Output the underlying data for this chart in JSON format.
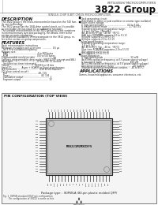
{
  "title_company": "MITSUBISHI MICROCOMPUTERS",
  "title_main": "3822 Group",
  "subtitle": "SINGLE-CHIP 8-BIT CMOS MICROCOMPUTER",
  "bg_color": "#ffffff",
  "description_title": "DESCRIPTION",
  "features_title": "FEATURES",
  "applications_title": "APPLICATIONS",
  "pin_config_title": "PIN CONFIGURATION (TOP VIEW)",
  "chip_label": "M38221M2MXXXFS",
  "package_text": "Package type :  80P6N-A (80-pin plastic molded QFP)",
  "fig_line1": "Fig. 1  80P6N standard 8047 pin configuration",
  "fig_line2": "        Pin configuration of 38222 is same as this.",
  "applications_text": "Games, household appliances, consumer electronics, etc.",
  "description_lines": [
    "The 3822 group is the micro-microcontroller based on the 740 fam-",
    "ily core technology.",
    "The 3822 group has the 16/8-drive control circuit, so it's possible",
    "to connection various serial ICs as additional functions.",
    "The useable microcontroller in the 3822 group includes variations",
    "in internal memory size and packaging. For details, refer to the",
    "section on parts numbering.",
    "For details on availability of microcomputer in the 3822 group, re-",
    "fer to the section on group components."
  ],
  "features_lines": [
    "Basic microcomputer instructions",
    "Minimum instruction execution time  .............  0.5 μs",
    "  (at 8 MHz oscillation frequency)",
    "Memory size:",
    "  RAM  .......................................  4 to 800 bytes",
    "  ROM  ......................................  000 to 500 bytes",
    "Programmable resolution ratio  .......................  up",
    "Software-programmable sleep modes (HALT/STOP concept and SBL)",
    "Interrupts  ...............................  12 sources, 10 vectors",
    "  (includes two timer interrupts)",
    "Timers  .................................  16/8/16 to 24 bits",
    "Serial I/O  ...........  Async + IrDA/RF or Quasi-asynchronous",
    "A-D converter  .............................  8/10 bits/4-channels",
    "I/O (close control circuit):",
    "  Port  .........................................  48, 116",
    "  Timer  ..........................................  40, 104",
    "  Cumulative output  ...................................  2",
    "  Segment output  .....................................  32"
  ],
  "right_col_lines": [
    "Clock generating circuit:",
    "  (Selectable to either crystal oscillator or ceramic type oscillator)",
    "Power source voltage:",
    "  In high-speed master  .............................  4.0 to 5.5V",
    "  In master system mode  ............................  2.7 to 5.5V",
    "  (Standard operating temperature range:",
    "   2.0 to 5.0 V Typ   [Note8b])",
    "  (At -40 to 85°C Typ : -40 to   °85°C)",
    "  (64K byte ROM/RAM supports 2.0 to 5.5 V)",
    "  (8K byte supports 2.0 to 5.5 V)",
    "  (4K byte supports 2.0 to 5.5 V)",
    "In low-speed master:",
    "  (Standard operating temperature range:",
    "   1.8 to 5.5V)",
    "  (At -40 to 85°C Typ : -40 to   °85°C)",
    "  (One-time ROM/RAM maintains 2.0 to 5.5 V)",
    "  (8K supports 2.0 to 5.5 V)",
    "  (4K supports 2.0 to 5.5 V)",
    "Power dissipation:",
    "  In high-speed mode  ....................................  32 mW",
    "  (At 8 MHz oscillation frequency, at 5 V power-source voltage)",
    "  In low-speed mode  .....................................  400 μW",
    "  (At 32 kHz oscillation frequency, at 5 V power-source voltage)",
    "  Operating temperature range  .......................  -20 to 85°C",
    "  (Standard operating temperature contains  :  -40 to 85°C)"
  ]
}
